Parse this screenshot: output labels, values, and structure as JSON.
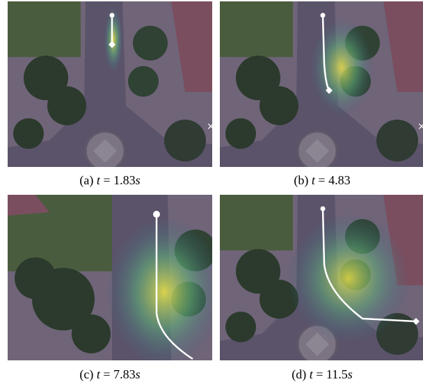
{
  "figure": {
    "panels": [
      {
        "label": "(a)",
        "var": "t",
        "eq": " = ",
        "value": "1.83",
        "unit": "s",
        "heat_level": 0.55,
        "path_shape": "short-straight",
        "marker_end": "diamond",
        "goal_marker": "x"
      },
      {
        "label": "(b)",
        "var": "t",
        "eq": " = ",
        "value": "4.83",
        "unit": "",
        "heat_level": 0.75,
        "path_shape": "descend-turn-right",
        "marker_end": "diamond",
        "goal_marker": "x"
      },
      {
        "label": "(c)",
        "var": "t",
        "eq": " = ",
        "value": "7.83",
        "unit": "s",
        "heat_level": 0.85,
        "path_shape": "long-descend-right",
        "marker_end": "none",
        "goal_marker": "none"
      },
      {
        "label": "(d)",
        "var": "t",
        "eq": " = ",
        "value": "11.5",
        "unit": "s",
        "heat_level": 0.9,
        "path_shape": "descend-turn-to-edge",
        "marker_end": "diamond",
        "goal_marker": "none"
      }
    ],
    "colors": {
      "grass": "#4a5c3e",
      "pavement": "#6f6478",
      "road": "#5b536a",
      "roof": "#7a4e5f",
      "tree": "#2b3a2c",
      "heat_low": "#3a6a8a",
      "heat_mid": "#5fae7a",
      "heat_high": "#e8e04a",
      "path": "#ffffff"
    }
  }
}
